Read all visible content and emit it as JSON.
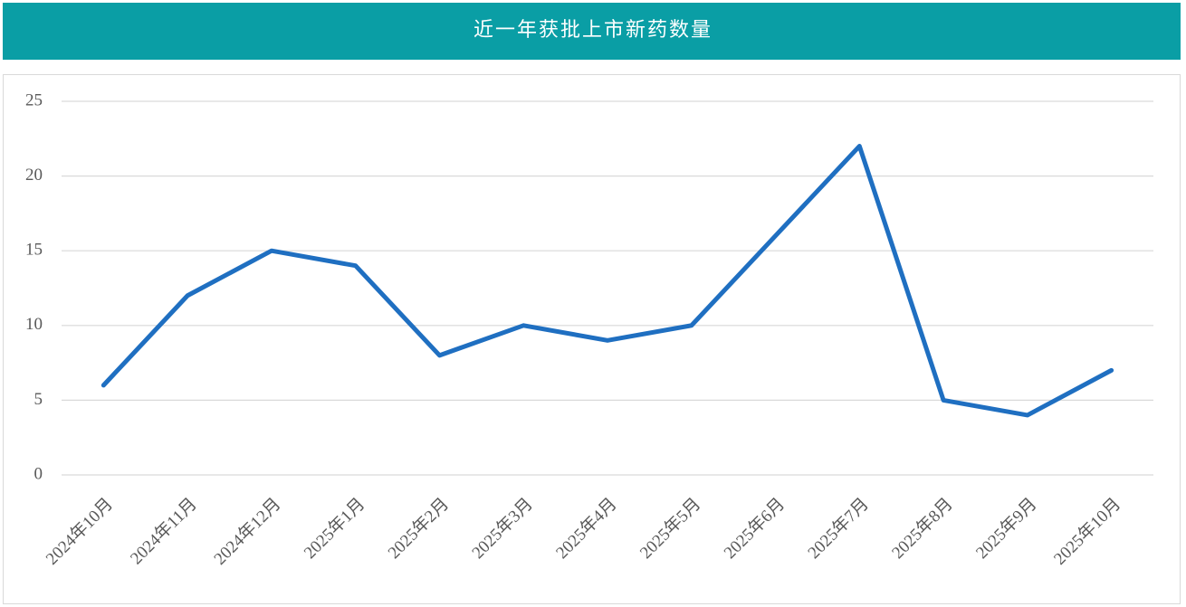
{
  "chart_data": {
    "type": "line",
    "title": "近一年获批上市新药数量",
    "categories": [
      "2024年10月",
      "2024年11月",
      "2024年12月",
      "2025年1月",
      "2025年2月",
      "2025年3月",
      "2025年4月",
      "2025年5月",
      "2025年6月",
      "2025年7月",
      "2025年8月",
      "2025年9月",
      "2025年10月"
    ],
    "values": [
      6,
      12,
      15,
      14,
      8,
      10,
      9,
      10,
      16,
      22,
      5,
      4,
      7
    ],
    "color": "#1f6fc1",
    "ylim": [
      0,
      25
    ],
    "yticks": [
      0,
      5,
      10,
      15,
      20,
      25
    ],
    "grid": true
  }
}
